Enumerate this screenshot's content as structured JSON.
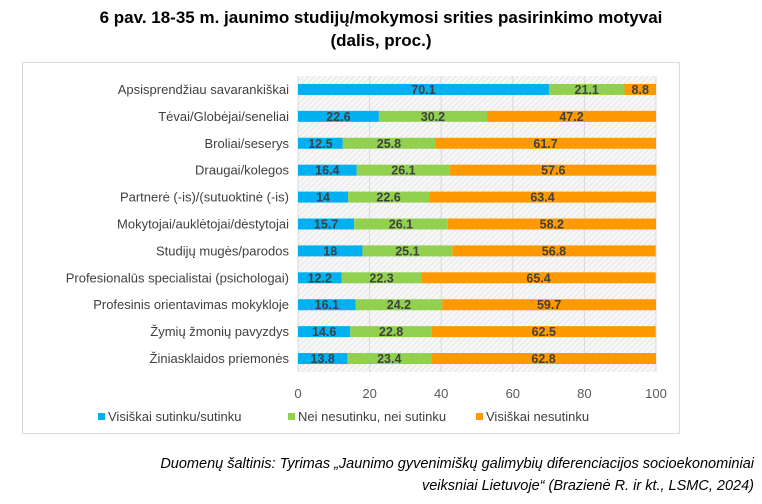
{
  "title_line1": "6 pav. 18-35 m. jaunimo studijų/mokymosi srities pasirinkimo motyvai",
  "title_line2": "(dalis, proc.)",
  "source_line1": "Duomenų šaltinis: Tyrimas „Jaunimo gyvenimiškų galimybių diferenciacijos socioekonominiai",
  "source_line2": "veiksniai Lietuvoje“ (Brazienė R. ir kt., LSMC, 2024)",
  "colors": {
    "s1": "#00b0f0",
    "s2": "#92d050",
    "s3": "#ff9900"
  },
  "chart_data": {
    "type": "bar",
    "orientation": "horizontal",
    "stacked": true,
    "title": "6 pav. 18-35 m. jaunimo studijų/mokymosi srities pasirinkimo motyvai (dalis, proc.)",
    "categories": [
      "Apsisprendžiau savarankiškai",
      "Tėvai/Globėjai/seneliai",
      "Broliai/seserys",
      "Draugai/kolegos",
      "Partnerė (-is)/(sutuoktinė (-is)",
      "Mokytojai/auklėtojai/dėstytojai",
      "Studijų mugės/parodos",
      "Profesionalūs specialistai (psichologai)",
      "Profesinis orientavimas mokykloje",
      "Žymių žmonių pavyzdys",
      "Žiniasklaidos priemonės"
    ],
    "series": [
      {
        "name": "Visiškai sutinku/sutinku",
        "values": [
          70.1,
          22.6,
          12.5,
          16.4,
          14,
          15.7,
          18,
          12.2,
          16.1,
          14.6,
          13.8
        ]
      },
      {
        "name": "Nei nesutinku, nei sutinku",
        "values": [
          21.1,
          30.2,
          25.8,
          26.1,
          22.6,
          26.1,
          25.1,
          22.3,
          24.2,
          22.8,
          23.4
        ]
      },
      {
        "name": "Visiškai nesutinku",
        "values": [
          8.8,
          47.2,
          61.7,
          57.6,
          63.4,
          58.2,
          56.8,
          65.4,
          59.7,
          62.5,
          62.8
        ]
      }
    ],
    "xlim": [
      0,
      100
    ],
    "xticks": [
      "0",
      "20",
      "40",
      "60",
      "80",
      "100"
    ],
    "grid": true,
    "legend": "bottom"
  }
}
